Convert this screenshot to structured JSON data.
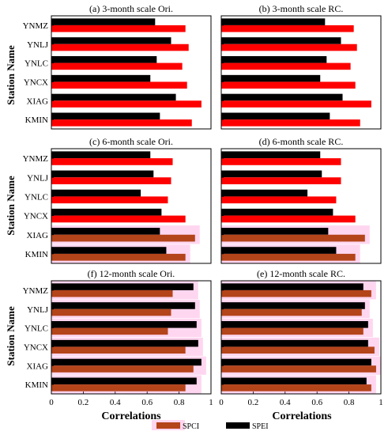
{
  "y_axis_label": "Station Name",
  "x_axis_label": "Correlations",
  "x_ticks": [
    "0",
    "0.2",
    "0.4",
    "0.6",
    "0.8",
    "1"
  ],
  "legend": [
    {
      "label": "SPCI",
      "color": "#b4441a"
    },
    {
      "label": "SPEI",
      "color": "#000000"
    }
  ],
  "colors": {
    "spci_bright": "#ff0000",
    "spci_dark": "#b4441a",
    "spei": "#000000",
    "highlight": "#ffd6f0"
  },
  "chart_data": [
    {
      "type": "bar",
      "title": "(a) 3-month scale Ori.",
      "categories": [
        "YNMZ",
        "YNLJ",
        "YNLC",
        "YNCX",
        "XIAG",
        "KMIN"
      ],
      "xlim": [
        0,
        1
      ],
      "series": [
        {
          "name": "SPCI",
          "values": [
            0.84,
            0.86,
            0.82,
            0.85,
            0.94,
            0.88
          ]
        },
        {
          "name": "SPEI",
          "values": [
            0.65,
            0.75,
            0.66,
            0.62,
            0.78,
            0.68
          ]
        }
      ]
    },
    {
      "type": "bar",
      "title": "(b) 3-month scale RC.",
      "categories": [
        "YNMZ",
        "YNLJ",
        "YNLC",
        "YNCX",
        "XIAG",
        "KMIN"
      ],
      "xlim": [
        0,
        1
      ],
      "series": [
        {
          "name": "SPCI",
          "values": [
            0.83,
            0.85,
            0.81,
            0.84,
            0.94,
            0.87
          ]
        },
        {
          "name": "SPEI",
          "values": [
            0.65,
            0.75,
            0.66,
            0.62,
            0.76,
            0.68
          ]
        }
      ]
    },
    {
      "type": "bar",
      "title": "(c) 6-month scale Ori.",
      "categories": [
        "YNMZ",
        "YNLJ",
        "YNLC",
        "YNCX",
        "XIAG",
        "KMIN"
      ],
      "xlim": [
        0,
        1
      ],
      "series": [
        {
          "name": "SPCI",
          "values": [
            0.76,
            0.75,
            0.73,
            0.84,
            0.9,
            0.84
          ]
        },
        {
          "name": "SPEI",
          "values": [
            0.62,
            0.64,
            0.56,
            0.69,
            0.68,
            0.72
          ]
        }
      ]
    },
    {
      "type": "bar",
      "title": "(d) 6-month scale RC.",
      "categories": [
        "YNMZ",
        "YNLJ",
        "YNLC",
        "YNCX",
        "XIAG",
        "KMIN"
      ],
      "xlim": [
        0,
        1
      ],
      "series": [
        {
          "name": "SPCI",
          "values": [
            0.75,
            0.75,
            0.72,
            0.84,
            0.9,
            0.84
          ]
        },
        {
          "name": "SPEI",
          "values": [
            0.62,
            0.63,
            0.54,
            0.7,
            0.67,
            0.72
          ]
        }
      ]
    },
    {
      "type": "bar",
      "title": "(f) 12-month scale Ori.",
      "categories": [
        "YNMZ",
        "YNLJ",
        "YNLC",
        "YNCX",
        "XIAG",
        "KMIN"
      ],
      "xlim": [
        0,
        1
      ],
      "series": [
        {
          "name": "SPCI",
          "values": [
            0.76,
            0.75,
            0.73,
            0.84,
            0.89,
            0.84
          ]
        },
        {
          "name": "SPEI",
          "values": [
            0.89,
            0.9,
            0.91,
            0.92,
            0.94,
            0.91
          ]
        }
      ]
    },
    {
      "type": "bar",
      "title": "(e) 12-month scale RC.",
      "categories": [
        "YNMZ",
        "YNLJ",
        "YNLC",
        "YNCX",
        "XIAG",
        "KMIN"
      ],
      "xlim": [
        0,
        1
      ],
      "series": [
        {
          "name": "SPCI",
          "values": [
            0.94,
            0.88,
            0.89,
            0.96,
            0.97,
            0.94
          ]
        },
        {
          "name": "SPEI",
          "values": [
            0.89,
            0.9,
            0.92,
            0.92,
            0.94,
            0.91
          ]
        }
      ]
    }
  ]
}
